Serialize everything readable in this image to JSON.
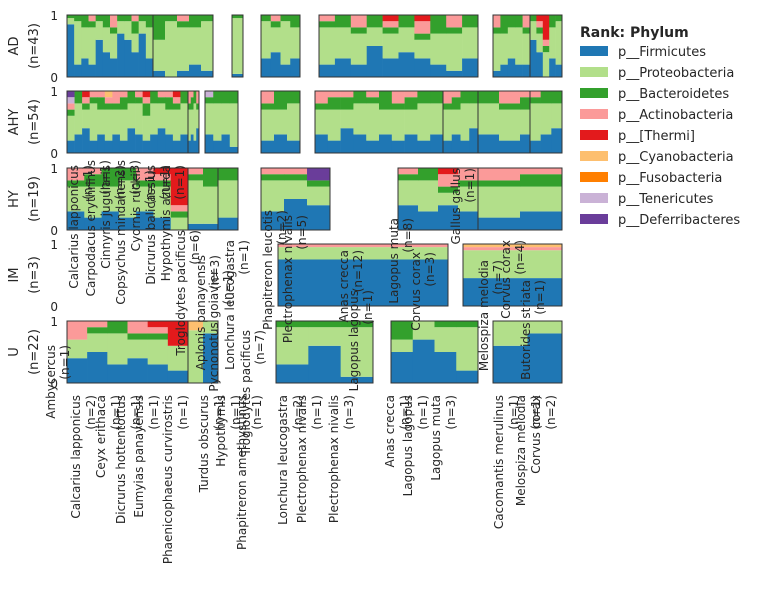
{
  "legend": {
    "title": "Rank: Phylum",
    "items": [
      {
        "label": "p__Firmicutes",
        "color": "#1f77b4"
      },
      {
        "label": "p__Proteobacteria",
        "color": "#b2df8a"
      },
      {
        "label": "p__Bacteroidetes",
        "color": "#33a02c"
      },
      {
        "label": "p__Actinobacteria",
        "color": "#fb9a99"
      },
      {
        "label": "p__[Thermi]",
        "color": "#e31a1c"
      },
      {
        "label": "p__Cyanobacteria",
        "color": "#fdbf6f"
      },
      {
        "label": "p__Fusobacteria",
        "color": "#ff7f00"
      },
      {
        "label": "p__Tenericutes",
        "color": "#cab2d6"
      },
      {
        "label": "p__Deferribacteres",
        "color": "#6a3d9a"
      }
    ]
  },
  "chart_data": {
    "type": "stacked-bar",
    "ylim": [
      0,
      1
    ],
    "yticks": [
      "0",
      "1"
    ],
    "rows": [
      {
        "label": "AD",
        "n": "(n=43)",
        "groups": [
          {
            "bars": [
              [
                0.85,
                0.1,
                0.05
              ],
              [
                0.2,
                0.7,
                0.1
              ],
              [
                0.3,
                0.5,
                0.2
              ],
              [
                0.2,
                0.6,
                0.1,
                0.1
              ],
              [
                0.6,
                0.3,
                0.1
              ],
              [
                0.4,
                0.4,
                0.2
              ],
              [
                0.3,
                0.4,
                0.1,
                0.2
              ],
              [
                0.7,
                0.2,
                0.1
              ],
              [
                0.6,
                0.3,
                0.1
              ],
              [
                0.4,
                0.3,
                0.2,
                0.1
              ],
              [
                0.7,
                0.2,
                0.1
              ],
              [
                0.3,
                0.5,
                0.2
              ]
            ]
          },
          {
            "bars": [
              [
                0.1,
                0.5,
                0.4
              ],
              [
                0.0,
                0.9,
                0.1
              ],
              [
                0.1,
                0.7,
                0.1,
                0.1
              ],
              [
                0.2,
                0.6,
                0.2
              ],
              [
                0.1,
                0.8,
                0.1
              ]
            ]
          },
          {
            "bars": [
              [
                0.05,
                0.9,
                0.05
              ]
            ]
          },
          {
            "bars": [
              [
                0.3,
                0.6,
                0.1
              ],
              [
                0.4,
                0.4,
                0.1,
                0.1
              ],
              [
                0.2,
                0.7,
                0.1
              ],
              [
                0.3,
                0.5,
                0.2
              ]
            ]
          },
          {
            "bars": [
              [
                0.2,
                0.6,
                0.1,
                0.1
              ],
              [
                0.3,
                0.5,
                0.2
              ],
              [
                0.2,
                0.5,
                0.1,
                0.2
              ],
              [
                0.5,
                0.3,
                0.2
              ],
              [
                0.3,
                0.4,
                0.1,
                0.1,
                0.1
              ],
              [
                0.4,
                0.4,
                0.2
              ],
              [
                0.3,
                0.3,
                0.1,
                0.2,
                0.1
              ],
              [
                0.2,
                0.5,
                0.3
              ],
              [
                0.1,
                0.6,
                0.1,
                0.2
              ],
              [
                0.3,
                0.5,
                0.2
              ]
            ]
          },
          {
            "bars": [
              [
                0.1,
                0.6,
                0.1,
                0.2
              ],
              [
                0.2,
                0.5,
                0.3
              ],
              [
                0.3,
                0.5,
                0.2
              ],
              [
                0.2,
                0.6,
                0.2
              ],
              [
                0.2,
                0.5,
                0.1,
                0.2
              ]
            ]
          },
          {
            "bars": [
              [
                0.6,
                0.3,
                0.1
              ],
              [
                0.4,
                0.3,
                0.1,
                0.1,
                0.1
              ],
              [
                0.0,
                0.4,
                0.1,
                0.1,
                0.4
              ],
              [
                0.3,
                0.5,
                0.2
              ],
              [
                0.2,
                0.7,
                0.1
              ]
            ]
          }
        ]
      },
      {
        "label": "AHY",
        "n": "(n=54)",
        "groups": [
          {
            "bars": [
              [
                0.2,
                0.4,
                0.1,
                0.1,
                0.0,
                0.0,
                0.0,
                0.1,
                0.1
              ],
              [
                0.3,
                0.5,
                0.2
              ],
              [
                0.4,
                0.3,
                0.1,
                0.1,
                0.1
              ],
              [
                0.2,
                0.6,
                0.1,
                0.1
              ],
              [
                0.3,
                0.4,
                0.2,
                0.1
              ],
              [
                0.2,
                0.5,
                0.1,
                0.1,
                0.0,
                0.1
              ],
              [
                0.3,
                0.4,
                0.1,
                0.2
              ],
              [
                0.2,
                0.5,
                0.2,
                0.1
              ],
              [
                0.4,
                0.4,
                0.2
              ],
              [
                0.3,
                0.5,
                0.1,
                0.1
              ],
              [
                0.2,
                0.4,
                0.2,
                0.1,
                0.1
              ],
              [
                0.3,
                0.5,
                0.2
              ],
              [
                0.4,
                0.4,
                0.1,
                0.1
              ],
              [
                0.3,
                0.4,
                0.2,
                0.1
              ],
              [
                0.2,
                0.5,
                0.1,
                0.1,
                0.1
              ],
              [
                0.3,
                0.5,
                0.2
              ]
            ]
          },
          {
            "bars": [
              [
                0.2,
                0.5,
                0.1,
                0.2
              ],
              [
                0.3,
                0.4,
                0.2,
                0.1
              ],
              [
                0.2,
                0.6,
                0.2
              ],
              [
                0.4,
                0.3,
                0.1,
                0.2
              ]
            ]
          },
          {
            "bars": [
              [
                0.3,
                0.5,
                0.1,
                0.0,
                0.0,
                0.0,
                0.0,
                0.1
              ],
              [
                0.2,
                0.6,
                0.2
              ],
              [
                0.3,
                0.5,
                0.2
              ],
              [
                0.1,
                0.7,
                0.2
              ]
            ]
          },
          {
            "bars": [
              [
                0.2,
                0.5,
                0.1,
                0.2
              ],
              [
                0.3,
                0.4,
                0.3
              ],
              [
                0.2,
                0.6,
                0.2
              ]
            ]
          },
          {
            "bars": [
              [
                0.3,
                0.4,
                0.1,
                0.2
              ],
              [
                0.2,
                0.5,
                0.2,
                0.1
              ],
              [
                0.4,
                0.3,
                0.2,
                0.1
              ],
              [
                0.3,
                0.5,
                0.2
              ],
              [
                0.2,
                0.6,
                0.1,
                0.1
              ],
              [
                0.3,
                0.4,
                0.3
              ],
              [
                0.2,
                0.5,
                0.1,
                0.2
              ],
              [
                0.3,
                0.4,
                0.2,
                0.1
              ],
              [
                0.2,
                0.6,
                0.2
              ],
              [
                0.3,
                0.5,
                0.2
              ]
            ]
          },
          {
            "bars": [
              [
                0.2,
                0.5,
                0.1,
                0.2
              ],
              [
                0.3,
                0.4,
                0.2,
                0.1
              ],
              [
                0.2,
                0.6,
                0.2
              ],
              [
                0.4,
                0.4,
                0.2
              ]
            ]
          },
          {
            "bars": [
              [
                0.3,
                0.5,
                0.2
              ],
              [
                0.2,
                0.5,
                0.1,
                0.2
              ],
              [
                0.3,
                0.4,
                0.2,
                0.1
              ],
              [
                0.2,
                0.6,
                0.2
              ]
            ]
          },
          {
            "bars": [
              [
                0.2,
                0.6,
                0.1,
                0.1
              ],
              [
                0.3,
                0.5,
                0.2
              ],
              [
                0.4,
                0.4,
                0.2
              ]
            ]
          }
        ]
      },
      {
        "label": "HY",
        "n": "(n=19)",
        "groups": [
          {
            "bars": [
              [
                0.3,
                0.4,
                0.1,
                0.2
              ],
              [
                0.2,
                0.5,
                0.2,
                0.1
              ],
              [
                0.3,
                0.4,
                0.3
              ],
              [
                0.2,
                0.6,
                0.2
              ],
              [
                0.3,
                0.4,
                0.1,
                0.2
              ],
              [
                0.2,
                0.5,
                0.1,
                0.1,
                0.1
              ],
              [
                0.0,
                0.2,
                0.1,
                0.1,
                0.6
              ]
            ]
          },
          {
            "bars": [
              [
                0.1,
                0.7,
                0.1,
                0.1
              ],
              [
                0.1,
                0.6,
                0.3
              ]
            ]
          },
          {
            "bars": [
              [
                0.2,
                0.6,
                0.2
              ]
            ]
          },
          {
            "bars": [
              [
                0.3,
                0.5,
                0.1,
                0.1
              ],
              [
                0.5,
                0.3,
                0.1,
                0.1
              ],
              [
                0.4,
                0.3,
                0.1,
                0.0,
                0.0,
                0.0,
                0.0,
                0.0,
                0.2
              ]
            ]
          },
          {
            "bars": [
              [
                0.4,
                0.4,
                0.1,
                0.1
              ],
              [
                0.3,
                0.5,
                0.2
              ],
              [
                0.4,
                0.2,
                0.1,
                0.2,
                0.1
              ],
              [
                0.3,
                0.4,
                0.1,
                0.2
              ]
            ]
          },
          {
            "bars": [
              [
                0.2,
                0.5,
                0.1,
                0.2
              ],
              [
                0.3,
                0.4,
                0.2,
                0.1
              ]
            ]
          }
        ]
      },
      {
        "label": "IM",
        "n": "(n=3)",
        "groups": [
          {
            "bars": [
              [
                0.75,
                0.2,
                0.0,
                0.05
              ]
            ]
          },
          {
            "bars": [
              [
                0.45,
                0.45,
                0.0,
                0.05,
                0.0,
                0.05
              ]
            ]
          }
        ]
      },
      {
        "label": "U",
        "n": "(n=22)",
        "groups": [
          {
            "bars": [
              [
                0.4,
                0.3,
                0.0,
                0.3
              ],
              [
                0.5,
                0.3,
                0.1,
                0.1
              ],
              [
                0.3,
                0.5,
                0.2
              ],
              [
                0.4,
                0.3,
                0.1,
                0.2
              ],
              [
                0.3,
                0.4,
                0.1,
                0.1,
                0.1
              ],
              [
                0.2,
                0.4,
                0.0,
                0.0,
                0.4
              ]
            ]
          },
          {
            "bars": [
              [
                0.0,
                0.85,
                0.0,
                0.0,
                0.0,
                0.15
              ],
              [
                0.8,
                0.2
              ]
            ]
          },
          {
            "bars": [
              [
                0.3,
                0.6,
                0.1
              ],
              [
                0.6,
                0.3,
                0.1
              ],
              [
                0.1,
                0.8,
                0.1
              ]
            ]
          },
          {
            "bars": [
              [
                0.5,
                0.2,
                0.3
              ],
              [
                0.7,
                0.3
              ],
              [
                0.5,
                0.4,
                0.1
              ],
              [
                0.2,
                0.7,
                0.1
              ]
            ]
          },
          {
            "bars": [
              [
                0.6,
                0.4
              ],
              [
                0.8,
                0.2
              ]
            ]
          }
        ]
      }
    ]
  },
  "xlabels": [
    {
      "text": "Calcarius lapponicus",
      "n": "(n=2)"
    },
    {
      "text": "Ceyx erithaca",
      "n": "(n=1)"
    },
    {
      "text": "Dicrurus hottentottus",
      "n": "(n=1)"
    },
    {
      "text": "Eumyias panayensis",
      "n": "(n=1)"
    },
    {
      "text": "Phaenicophaeus curvirostris",
      "n": "(n=1)"
    },
    {
      "text": "Turdus obscurus",
      "n": "(n=1)"
    },
    {
      "text": "Hypothymis",
      "n": "(n=1)"
    },
    {
      "text": "Phapitreron amethystinus",
      "n": "(n=1)"
    },
    {
      "text": "Lonchura leucogastra",
      "n": "(n=2)"
    },
    {
      "text": "Plectrophenax nivalis",
      "n": "(n=1)"
    },
    {
      "text": "Plectrophenax nivalis",
      "n": "(n=3)"
    },
    {
      "text": "Anas crecca",
      "n": "(n=1)"
    },
    {
      "text": "Lagopus lagopus",
      "n": "(n=1)"
    },
    {
      "text": "Lagopus muta",
      "n": "(n=3)"
    },
    {
      "text": "Cacomantis merulinus",
      "n": "(n=1)"
    },
    {
      "text": "Melospiza melodia",
      "n": "(n=1)"
    },
    {
      "text": "Corvus corax",
      "n": "(n=2)"
    }
  ],
  "overlay_labels": [
    {
      "text": "Calcarius lapponicus",
      "n": "(n=1)"
    },
    {
      "text": "Carpodacus erythrinus",
      "n": "(n=1)"
    },
    {
      "text": "Cinnyris jugularis",
      "n": "(n=2)"
    },
    {
      "text": "Copsychus mindanensis",
      "n": "(n=3)"
    },
    {
      "text": "Cyornis ruckii",
      "n": "(n=1)"
    },
    {
      "text": "Dicrurus balicassius",
      "n": "(n=1)"
    },
    {
      "text": "Hypothymis azurea",
      "n": "(n=1)"
    },
    {
      "text": "Troglodytes pacificus",
      "n": "(n=6)"
    },
    {
      "text": "Aplonis panayensis",
      "n": "(n=3)"
    },
    {
      "text": "Pycnonotus goiavier",
      "n": "(n=1)"
    },
    {
      "text": "Lonchura leucogastra",
      "n": "(n=1)"
    },
    {
      "text": "Troglodytes pacificus",
      "n": "(n=7)"
    },
    {
      "text": "Phapitreron leucotis",
      "n": "(n=2)"
    },
    {
      "text": "Plectrophenax nivalis",
      "n": "(n=5)"
    },
    {
      "text": "Anas crecca",
      "n": "(n=12)"
    },
    {
      "text": "Lagopus lagopus",
      "n": "(n=1)"
    },
    {
      "text": "Lagopus muta",
      "n": "(n=8)"
    },
    {
      "text": "Corvus corax",
      "n": "(n=3)"
    },
    {
      "text": "Gallus gallus",
      "n": "(n=1)"
    },
    {
      "text": "Melospiza melodia",
      "n": "(n=7)"
    },
    {
      "text": "Corvus corax",
      "n": "(n=4)"
    },
    {
      "text": "Butorides striata",
      "n": "(n=1)"
    },
    {
      "text": "Ambycercus",
      "n": "(n=1)"
    }
  ]
}
